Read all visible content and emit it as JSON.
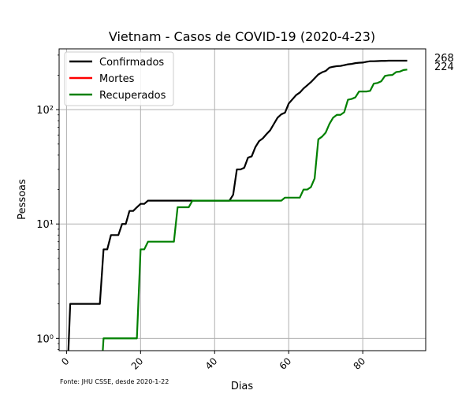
{
  "chart_data": {
    "type": "line",
    "title": "Vietnam - Casos de COVID-19 (2020-4-23)",
    "xlabel": "Dias",
    "ylabel": "Pessoas",
    "yscale": "log",
    "xlim": [
      -2,
      97
    ],
    "ylim": [
      0.78,
      340
    ],
    "grid": true,
    "legend_position": "top-left",
    "xticks": [
      0,
      20,
      40,
      60,
      80
    ],
    "yticks": [
      1,
      10,
      100
    ],
    "ytick_labels": [
      "10⁰",
      "10¹",
      "10²"
    ],
    "source_note": "Fonte: JHU CSSE, desde 2020-1-22",
    "end_labels": [
      "268",
      "224"
    ],
    "series": [
      {
        "name": "Confirmados",
        "color": "#000000",
        "points": [
          [
            0,
            0
          ],
          [
            1,
            2
          ],
          [
            2,
            2
          ],
          [
            3,
            2
          ],
          [
            4,
            2
          ],
          [
            5,
            2
          ],
          [
            6,
            2
          ],
          [
            7,
            2
          ],
          [
            8,
            2
          ],
          [
            9,
            2
          ],
          [
            10,
            6
          ],
          [
            11,
            6
          ],
          [
            12,
            8
          ],
          [
            13,
            8
          ],
          [
            14,
            8
          ],
          [
            15,
            10
          ],
          [
            16,
            10
          ],
          [
            17,
            13
          ],
          [
            18,
            13
          ],
          [
            19,
            14
          ],
          [
            20,
            15
          ],
          [
            21,
            15
          ],
          [
            22,
            16
          ],
          [
            23,
            16
          ],
          [
            24,
            16
          ],
          [
            25,
            16
          ],
          [
            26,
            16
          ],
          [
            27,
            16
          ],
          [
            28,
            16
          ],
          [
            29,
            16
          ],
          [
            30,
            16
          ],
          [
            31,
            16
          ],
          [
            32,
            16
          ],
          [
            33,
            16
          ],
          [
            34,
            16
          ],
          [
            35,
            16
          ],
          [
            36,
            16
          ],
          [
            37,
            16
          ],
          [
            38,
            16
          ],
          [
            39,
            16
          ],
          [
            40,
            16
          ],
          [
            41,
            16
          ],
          [
            42,
            16
          ],
          [
            43,
            16
          ],
          [
            44,
            16
          ],
          [
            45,
            18
          ],
          [
            46,
            30
          ],
          [
            47,
            30
          ],
          [
            48,
            31
          ],
          [
            49,
            38
          ],
          [
            50,
            39
          ],
          [
            51,
            47
          ],
          [
            52,
            53
          ],
          [
            53,
            56
          ],
          [
            54,
            61
          ],
          [
            55,
            66
          ],
          [
            56,
            75
          ],
          [
            57,
            85
          ],
          [
            58,
            91
          ],
          [
            59,
            94
          ],
          [
            60,
            113
          ],
          [
            61,
            123
          ],
          [
            62,
            134
          ],
          [
            63,
            141
          ],
          [
            64,
            153
          ],
          [
            65,
            163
          ],
          [
            66,
            174
          ],
          [
            67,
            188
          ],
          [
            68,
            203
          ],
          [
            69,
            212
          ],
          [
            70,
            218
          ],
          [
            71,
            233
          ],
          [
            72,
            237
          ],
          [
            73,
            240
          ],
          [
            74,
            241
          ],
          [
            75,
            245
          ],
          [
            76,
            249
          ],
          [
            77,
            251
          ],
          [
            78,
            255
          ],
          [
            79,
            257
          ],
          [
            80,
            258
          ],
          [
            81,
            262
          ],
          [
            82,
            265
          ],
          [
            83,
            265
          ],
          [
            84,
            266
          ],
          [
            85,
            267
          ],
          [
            86,
            267
          ],
          [
            87,
            268
          ],
          [
            88,
            268
          ],
          [
            89,
            268
          ],
          [
            90,
            268
          ],
          [
            91,
            268
          ],
          [
            92,
            268
          ]
        ]
      },
      {
        "name": "Mortes",
        "color": "#ff0000",
        "points": [
          [
            0,
            0
          ],
          [
            92,
            0
          ]
        ]
      },
      {
        "name": "Recuperados",
        "color": "#008000",
        "points": [
          [
            0,
            0
          ],
          [
            9,
            0
          ],
          [
            10,
            1
          ],
          [
            11,
            1
          ],
          [
            12,
            1
          ],
          [
            13,
            1
          ],
          [
            14,
            1
          ],
          [
            15,
            1
          ],
          [
            16,
            1
          ],
          [
            17,
            1
          ],
          [
            18,
            1
          ],
          [
            19,
            1
          ],
          [
            20,
            6
          ],
          [
            21,
            6
          ],
          [
            22,
            7
          ],
          [
            23,
            7
          ],
          [
            24,
            7
          ],
          [
            25,
            7
          ],
          [
            26,
            7
          ],
          [
            27,
            7
          ],
          [
            28,
            7
          ],
          [
            29,
            7
          ],
          [
            30,
            14
          ],
          [
            31,
            14
          ],
          [
            32,
            14
          ],
          [
            33,
            14
          ],
          [
            34,
            16
          ],
          [
            35,
            16
          ],
          [
            36,
            16
          ],
          [
            37,
            16
          ],
          [
            38,
            16
          ],
          [
            39,
            16
          ],
          [
            40,
            16
          ],
          [
            41,
            16
          ],
          [
            42,
            16
          ],
          [
            43,
            16
          ],
          [
            44,
            16
          ],
          [
            45,
            16
          ],
          [
            46,
            16
          ],
          [
            47,
            16
          ],
          [
            48,
            16
          ],
          [
            49,
            16
          ],
          [
            50,
            16
          ],
          [
            51,
            16
          ],
          [
            52,
            16
          ],
          [
            53,
            16
          ],
          [
            54,
            16
          ],
          [
            55,
            16
          ],
          [
            56,
            16
          ],
          [
            57,
            16
          ],
          [
            58,
            16
          ],
          [
            59,
            17
          ],
          [
            60,
            17
          ],
          [
            61,
            17
          ],
          [
            62,
            17
          ],
          [
            63,
            17
          ],
          [
            64,
            20
          ],
          [
            65,
            20
          ],
          [
            66,
            21
          ],
          [
            67,
            25
          ],
          [
            68,
            55
          ],
          [
            69,
            58
          ],
          [
            70,
            63
          ],
          [
            71,
            75
          ],
          [
            72,
            85
          ],
          [
            73,
            90
          ],
          [
            74,
            90
          ],
          [
            75,
            95
          ],
          [
            76,
            122
          ],
          [
            77,
            124
          ],
          [
            78,
            128
          ],
          [
            79,
            144
          ],
          [
            80,
            144
          ],
          [
            81,
            144
          ],
          [
            82,
            146
          ],
          [
            83,
            169
          ],
          [
            84,
            171
          ],
          [
            85,
            177
          ],
          [
            86,
            197
          ],
          [
            87,
            200
          ],
          [
            88,
            201
          ],
          [
            89,
            213
          ],
          [
            90,
            215
          ],
          [
            91,
            222
          ],
          [
            92,
            224
          ]
        ]
      }
    ]
  }
}
